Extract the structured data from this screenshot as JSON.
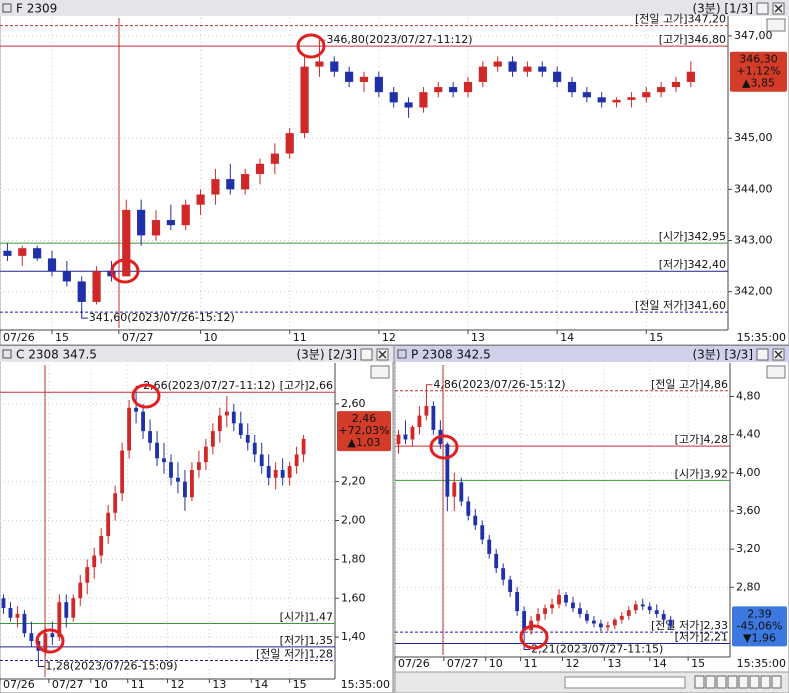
{
  "chart_data": [
    {
      "type": "candlestick",
      "title": "F 2309",
      "period": "(3분) [1/3]",
      "up_color": "#d02828",
      "down_color": "#2030a8",
      "ylim": [
        341.29,
        347.35
      ],
      "yticks": [
        {
          "value": 347,
          "label": "347,00"
        },
        {
          "value": 345,
          "label": "345,00"
        },
        {
          "value": 344,
          "label": "344,00"
        },
        {
          "value": 343,
          "label": "343,00"
        },
        {
          "value": 342,
          "label": "342,00"
        }
      ],
      "xlim": [
        0,
        49
      ],
      "xticks": [
        {
          "value": 0,
          "label": "07/26"
        },
        {
          "value": 3.5,
          "label": "15"
        },
        {
          "value": 8,
          "label": "07/27"
        },
        {
          "value": 13.5,
          "label": "10"
        },
        {
          "value": 19.5,
          "label": "11"
        },
        {
          "value": 25.5,
          "label": "12"
        },
        {
          "value": 31.5,
          "label": "13"
        },
        {
          "value": 37.5,
          "label": "14"
        },
        {
          "value": 43.5,
          "label": "15"
        }
      ],
      "time_label": "15:35:00",
      "ohlc": [
        [
          342.8,
          342.95,
          342.6,
          342.7
        ],
        [
          342.7,
          342.9,
          342.5,
          342.85
        ],
        [
          342.85,
          342.9,
          342.6,
          342.65
        ],
        [
          342.65,
          342.8,
          342.3,
          342.4
        ],
        [
          342.4,
          342.6,
          342.1,
          342.2
        ],
        [
          342.2,
          342.3,
          341.6,
          341.8
        ],
        [
          341.8,
          342.5,
          341.75,
          342.4
        ],
        [
          342.4,
          342.6,
          342.2,
          342.3
        ],
        [
          342.3,
          343.8,
          342.3,
          343.6
        ],
        [
          343.6,
          343.8,
          342.9,
          343.1
        ],
        [
          343.1,
          343.6,
          343.0,
          343.4
        ],
        [
          343.4,
          343.7,
          343.2,
          343.3
        ],
        [
          343.3,
          343.8,
          343.2,
          343.7
        ],
        [
          343.7,
          344.0,
          343.5,
          343.9
        ],
        [
          343.9,
          344.4,
          343.7,
          344.2
        ],
        [
          344.2,
          344.5,
          343.9,
          344.0
        ],
        [
          344.0,
          344.4,
          343.9,
          344.3
        ],
        [
          344.3,
          344.6,
          344.1,
          344.5
        ],
        [
          344.5,
          344.9,
          344.3,
          344.7
        ],
        [
          344.7,
          345.2,
          344.6,
          345.1
        ],
        [
          345.1,
          346.6,
          345.0,
          346.4
        ],
        [
          346.4,
          346.8,
          346.2,
          346.5
        ],
        [
          346.5,
          346.6,
          346.2,
          346.3
        ],
        [
          346.3,
          346.4,
          346.0,
          346.1
        ],
        [
          346.1,
          346.3,
          345.9,
          346.2
        ],
        [
          346.2,
          346.3,
          345.8,
          345.9
        ],
        [
          345.9,
          346.0,
          345.6,
          345.7
        ],
        [
          345.7,
          345.8,
          345.4,
          345.6
        ],
        [
          345.6,
          346.0,
          345.5,
          345.9
        ],
        [
          345.9,
          346.1,
          345.8,
          346.0
        ],
        [
          346.0,
          346.1,
          345.8,
          345.9
        ],
        [
          345.9,
          346.2,
          345.8,
          346.1
        ],
        [
          346.1,
          346.5,
          346.0,
          346.4
        ],
        [
          346.4,
          346.6,
          346.3,
          346.5
        ],
        [
          346.5,
          346.6,
          346.2,
          346.3
        ],
        [
          346.3,
          346.5,
          346.2,
          346.4
        ],
        [
          346.4,
          346.5,
          346.2,
          346.3
        ],
        [
          346.3,
          346.4,
          346.0,
          346.1
        ],
        [
          346.1,
          346.2,
          345.8,
          345.9
        ],
        [
          345.9,
          346.0,
          345.7,
          345.8
        ],
        [
          345.8,
          345.9,
          345.6,
          345.7
        ],
        [
          345.7,
          345.8,
          345.6,
          345.75
        ],
        [
          345.75,
          345.9,
          345.6,
          345.8
        ],
        [
          345.8,
          346.0,
          345.7,
          345.9
        ],
        [
          345.9,
          346.1,
          345.8,
          346.0
        ],
        [
          346.0,
          346.2,
          345.9,
          346.1
        ],
        [
          346.1,
          346.5,
          346.0,
          346.3
        ]
      ],
      "ref_lines": [
        {
          "text": "[전일 고가]347,20",
          "value": 347.2,
          "color": "#c03030",
          "dashed": true
        },
        {
          "text": "[고가]346,80",
          "value": 346.8,
          "color": "#c03030",
          "dashed": false
        },
        {
          "text": "[시가]342,95",
          "value": 342.95,
          "color": "#3a9a3a",
          "dashed": false
        },
        {
          "text": "[저가]342,40",
          "value": 342.4,
          "color": "#202090",
          "dashed": false
        },
        {
          "text": "[전일 저가]341,60",
          "value": 341.6,
          "color": "#202090",
          "dashed": true
        }
      ],
      "annotations": [
        {
          "text": "346,80(2023/07/27-11:12)",
          "value": 346.8,
          "at": 21,
          "color": "#c03030"
        },
        {
          "text": "341,60(2023/07/26-15:12)",
          "value": 341.6,
          "at": 5,
          "color": "#202090"
        }
      ],
      "price_box": {
        "value": 346.3,
        "lines": [
          "346,30",
          "+1,12%",
          "▲3,85"
        ],
        "color": "#d23c28"
      }
    },
    {
      "type": "candlestick",
      "title": "C 2308 347.5",
      "period": "(3분) [2/3]",
      "up_color": "#d02828",
      "down_color": "#2030a8",
      "ylim": [
        1.195,
        2.8
      ],
      "yticks": [
        {
          "value": 2.6,
          "label": "2,60"
        },
        {
          "value": 2.2,
          "label": "2,20"
        },
        {
          "value": 2.0,
          "label": "2,00"
        },
        {
          "value": 1.8,
          "label": "1,80"
        },
        {
          "value": 1.6,
          "label": "1,60"
        },
        {
          "value": 1.4,
          "label": "1,40"
        }
      ],
      "xlim": [
        0,
        48
      ],
      "xticks": [
        {
          "value": 0,
          "label": "07/26"
        },
        {
          "value": 7,
          "label": "07/27"
        },
        {
          "value": 13,
          "label": "10"
        },
        {
          "value": 18.3,
          "label": "11"
        },
        {
          "value": 24,
          "label": "12"
        },
        {
          "value": 30,
          "label": "13"
        },
        {
          "value": 36,
          "label": "14"
        },
        {
          "value": 41.5,
          "label": "15"
        }
      ],
      "time_label": "15:35:00",
      "ohlc": [
        [
          1.6,
          1.62,
          1.52,
          1.55
        ],
        [
          1.55,
          1.58,
          1.48,
          1.5
        ],
        [
          1.5,
          1.56,
          1.45,
          1.52
        ],
        [
          1.52,
          1.54,
          1.4,
          1.42
        ],
        [
          1.42,
          1.48,
          1.35,
          1.38
        ],
        [
          1.38,
          1.42,
          1.28,
          1.33
        ],
        [
          1.33,
          1.45,
          1.3,
          1.42
        ],
        [
          1.42,
          1.48,
          1.36,
          1.4
        ],
        [
          1.4,
          1.62,
          1.38,
          1.58
        ],
        [
          1.58,
          1.62,
          1.45,
          1.5
        ],
        [
          1.5,
          1.62,
          1.48,
          1.6
        ],
        [
          1.6,
          1.72,
          1.56,
          1.68
        ],
        [
          1.68,
          1.8,
          1.62,
          1.76
        ],
        [
          1.76,
          1.86,
          1.7,
          1.82
        ],
        [
          1.82,
          1.96,
          1.78,
          1.92
        ],
        [
          1.92,
          2.08,
          1.88,
          2.04
        ],
        [
          2.04,
          2.18,
          2.0,
          2.14
        ],
        [
          2.14,
          2.4,
          2.1,
          2.36
        ],
        [
          2.36,
          2.62,
          2.32,
          2.58
        ],
        [
          2.58,
          2.66,
          2.5,
          2.56
        ],
        [
          2.56,
          2.6,
          2.42,
          2.46
        ],
        [
          2.46,
          2.52,
          2.36,
          2.4
        ],
        [
          2.4,
          2.46,
          2.28,
          2.32
        ],
        [
          2.32,
          2.4,
          2.24,
          2.3
        ],
        [
          2.3,
          2.34,
          2.18,
          2.22
        ],
        [
          2.22,
          2.3,
          2.14,
          2.2
        ],
        [
          2.2,
          2.26,
          2.05,
          2.12
        ],
        [
          2.12,
          2.3,
          2.1,
          2.26
        ],
        [
          2.26,
          2.36,
          2.22,
          2.3
        ],
        [
          2.3,
          2.42,
          2.26,
          2.38
        ],
        [
          2.38,
          2.5,
          2.34,
          2.46
        ],
        [
          2.46,
          2.58,
          2.4,
          2.54
        ],
        [
          2.54,
          2.64,
          2.48,
          2.56
        ],
        [
          2.56,
          2.6,
          2.46,
          2.5
        ],
        [
          2.5,
          2.56,
          2.42,
          2.44
        ],
        [
          2.44,
          2.5,
          2.36,
          2.4
        ],
        [
          2.4,
          2.44,
          2.3,
          2.34
        ],
        [
          2.34,
          2.4,
          2.24,
          2.28
        ],
        [
          2.28,
          2.34,
          2.18,
          2.22
        ],
        [
          2.22,
          2.3,
          2.16,
          2.26
        ],
        [
          2.26,
          2.32,
          2.18,
          2.22
        ],
        [
          2.22,
          2.3,
          2.18,
          2.28
        ],
        [
          2.28,
          2.38,
          2.24,
          2.34
        ],
        [
          2.34,
          2.44,
          2.3,
          2.42
        ]
      ],
      "ref_lines": [
        {
          "text": "[고가]2,66",
          "value": 2.66,
          "color": "#c03030",
          "dashed": false
        },
        {
          "text": "[시가]1,47",
          "value": 1.47,
          "color": "#3a9a3a",
          "dashed": false
        },
        {
          "text": "[저가]1,35",
          "value": 1.35,
          "color": "#202090",
          "dashed": false
        },
        {
          "text": "[전일 저가]1,28",
          "value": 1.28,
          "color": "#202090",
          "dashed": true
        }
      ],
      "annotations": [
        {
          "text": "2,66(2023/07/27-11:12)",
          "value": 2.66,
          "at": 19,
          "color": "#c03030"
        },
        {
          "text": "1,28(2023/07/26-15:09)",
          "value": 1.28,
          "at": 5,
          "color": "#202090"
        }
      ],
      "price_box": {
        "value": 2.46,
        "lines": [
          "2,46",
          "+72,03%",
          "▲1,03"
        ],
        "color": "#d23c28"
      }
    },
    {
      "type": "candlestick",
      "title": "P 2308 342.5",
      "period": "(3분) [3/3]",
      "up_color": "#d02828",
      "down_color": "#2030a8",
      "ylim": [
        2.09,
        5.13
      ],
      "yticks": [
        {
          "value": 4.8,
          "label": "4,80"
        },
        {
          "value": 4.4,
          "label": "4,40"
        },
        {
          "value": 4.0,
          "label": "4,00"
        },
        {
          "value": 3.6,
          "label": "3,60"
        },
        {
          "value": 3.2,
          "label": "3,20"
        },
        {
          "value": 2.8,
          "label": "2,80"
        }
      ],
      "xlim": [
        0,
        48
      ],
      "xticks": [
        {
          "value": 0,
          "label": "07/26"
        },
        {
          "value": 7,
          "label": "07/27"
        },
        {
          "value": 13,
          "label": "10"
        },
        {
          "value": 18,
          "label": "11"
        },
        {
          "value": 24,
          "label": "12"
        },
        {
          "value": 30,
          "label": "13"
        },
        {
          "value": 36.5,
          "label": "14"
        },
        {
          "value": 42,
          "label": "15"
        }
      ],
      "time_label": "15:35:00",
      "ohlc": [
        [
          4.3,
          4.45,
          4.2,
          4.4
        ],
        [
          4.4,
          4.55,
          4.3,
          4.35
        ],
        [
          4.35,
          4.5,
          4.28,
          4.48
        ],
        [
          4.48,
          4.7,
          4.4,
          4.6
        ],
        [
          4.6,
          4.86,
          4.55,
          4.7
        ],
        [
          4.7,
          4.75,
          4.4,
          4.45
        ],
        [
          4.45,
          4.55,
          4.25,
          4.3
        ],
        [
          4.3,
          4.32,
          3.6,
          3.75
        ],
        [
          3.75,
          4.0,
          3.6,
          3.9
        ],
        [
          3.9,
          3.95,
          3.65,
          3.7
        ],
        [
          3.7,
          3.75,
          3.5,
          3.55
        ],
        [
          3.55,
          3.62,
          3.4,
          3.45
        ],
        [
          3.45,
          3.5,
          3.25,
          3.3
        ],
        [
          3.3,
          3.35,
          3.1,
          3.15
        ],
        [
          3.15,
          3.2,
          2.95,
          3.0
        ],
        [
          3.0,
          3.05,
          2.82,
          2.88
        ],
        [
          2.88,
          2.92,
          2.7,
          2.75
        ],
        [
          2.75,
          2.8,
          2.5,
          2.55
        ],
        [
          2.55,
          2.6,
          2.21,
          2.35
        ],
        [
          2.35,
          2.5,
          2.3,
          2.45
        ],
        [
          2.45,
          2.58,
          2.4,
          2.52
        ],
        [
          2.52,
          2.62,
          2.46,
          2.58
        ],
        [
          2.58,
          2.68,
          2.52,
          2.62
        ],
        [
          2.62,
          2.78,
          2.58,
          2.72
        ],
        [
          2.72,
          2.75,
          2.6,
          2.64
        ],
        [
          2.64,
          2.7,
          2.54,
          2.58
        ],
        [
          2.58,
          2.64,
          2.48,
          2.52
        ],
        [
          2.52,
          2.56,
          2.42,
          2.45
        ],
        [
          2.45,
          2.5,
          2.38,
          2.42
        ],
        [
          2.42,
          2.46,
          2.34,
          2.38
        ],
        [
          2.38,
          2.44,
          2.34,
          2.4
        ],
        [
          2.4,
          2.48,
          2.36,
          2.46
        ],
        [
          2.46,
          2.54,
          2.42,
          2.5
        ],
        [
          2.5,
          2.6,
          2.46,
          2.56
        ],
        [
          2.56,
          2.66,
          2.52,
          2.62
        ],
        [
          2.62,
          2.68,
          2.56,
          2.6
        ],
        [
          2.6,
          2.64,
          2.52,
          2.56
        ],
        [
          2.56,
          2.62,
          2.48,
          2.52
        ],
        [
          2.52,
          2.56,
          2.42,
          2.46
        ],
        [
          2.46,
          2.5,
          2.36,
          2.39
        ]
      ],
      "ref_lines": [
        {
          "text": "[전일 고가]4,86",
          "value": 4.86,
          "color": "#c03030",
          "dashed": true
        },
        {
          "text": "[고가]4,28",
          "value": 4.28,
          "color": "#c03030",
          "dashed": false
        },
        {
          "text": "[시가]3,92",
          "value": 3.92,
          "color": "#3a9a3a",
          "dashed": false
        },
        {
          "text": "[전일 저가]2,33",
          "value": 2.33,
          "color": "#202090",
          "dashed": true
        },
        {
          "text": "[저가]2,21",
          "value": 2.21,
          "color": "#202090",
          "dashed": false
        }
      ],
      "annotations": [
        {
          "text": "4,86(2023/07/26-15:12)",
          "value": 4.86,
          "at": 4,
          "color": "#c03030"
        },
        {
          "text": "2,21(2023/07/27-11:15)",
          "value": 2.21,
          "at": 18,
          "color": "#202090"
        }
      ],
      "price_box": {
        "value": 2.39,
        "lines": [
          "2,39",
          "-45,06%",
          "▼1,96"
        ],
        "color": "#3c78e0"
      }
    }
  ]
}
